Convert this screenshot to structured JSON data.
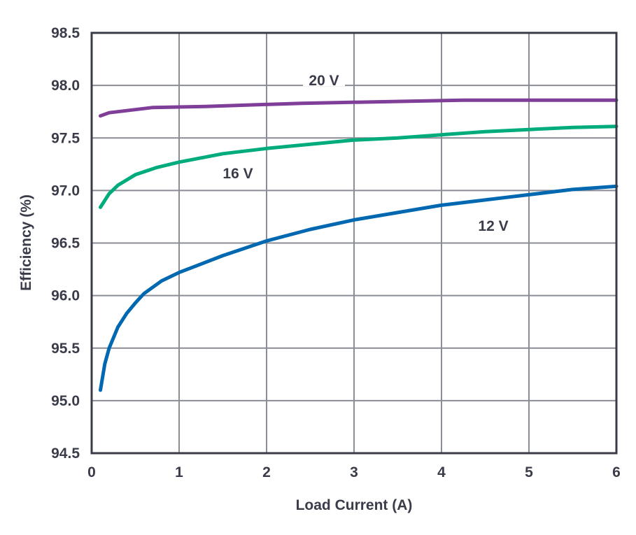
{
  "chart_data": {
    "type": "line",
    "title": "",
    "xlabel": "Load Current (A)",
    "ylabel": "Efficiency (%)",
    "xlim": [
      0,
      6
    ],
    "ylim": [
      94.5,
      98.5
    ],
    "xticks": [
      "0",
      "1",
      "2",
      "3",
      "4",
      "5",
      "6"
    ],
    "yticks": [
      "94.5",
      "95.0",
      "95.5",
      "96.0",
      "96.5",
      "97.0",
      "97.5",
      "98.0",
      "98.5"
    ],
    "grid": true,
    "series": [
      {
        "name": "20 V",
        "color": "#7f3f98",
        "x": [
          0.1,
          0.2,
          0.4,
          0.7,
          1.3,
          2.4,
          4.25,
          6
        ],
        "y": [
          97.71,
          97.74,
          97.76,
          97.79,
          97.8,
          97.83,
          97.86,
          97.86
        ]
      },
      {
        "name": "16 V",
        "color": "#00ac7c",
        "x": [
          0.1,
          0.2,
          0.3,
          0.5,
          0.75,
          1,
          1.5,
          2,
          2.5,
          3,
          3.5,
          4,
          4.5,
          5,
          5.5,
          6
        ],
        "y": [
          96.84,
          96.97,
          97.05,
          97.15,
          97.22,
          97.27,
          97.35,
          97.4,
          97.44,
          97.48,
          97.5,
          97.53,
          97.56,
          97.58,
          97.6,
          97.61
        ]
      },
      {
        "name": "12 V",
        "color": "#0068b0",
        "x": [
          0.1,
          0.15,
          0.2,
          0.3,
          0.4,
          0.5,
          0.6,
          0.7,
          0.8,
          1,
          1.25,
          1.5,
          2,
          2.5,
          3,
          3.5,
          4,
          4.5,
          5,
          5.5,
          6
        ],
        "y": [
          95.1,
          95.35,
          95.5,
          95.7,
          95.83,
          95.93,
          96.02,
          96.08,
          96.14,
          96.22,
          96.3,
          96.38,
          96.52,
          96.63,
          96.72,
          96.79,
          96.86,
          96.91,
          96.96,
          97.01,
          97.04
        ]
      }
    ]
  }
}
